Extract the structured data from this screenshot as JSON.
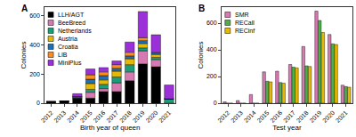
{
  "chart_data": [
    {
      "type": "bar",
      "title": "A",
      "stacked": true,
      "grid": false,
      "legend": "upper left",
      "x_label": "Birth year of queen",
      "y_label": "Colonies",
      "categories": [
        "2012",
        "2013",
        "2014",
        "2015",
        "2016",
        "2017",
        "2018",
        "2019",
        "2020",
        "2021"
      ],
      "series": [
        {
          "name": "LLH/AGT",
          "color": "#000000",
          "values": [
            10,
            15,
            35,
            35,
            80,
            80,
            155,
            270,
            250,
            0
          ]
        },
        {
          "name": "BeeBreed",
          "color": "#d67ab1",
          "values": [
            0,
            0,
            0,
            40,
            20,
            60,
            60,
            90,
            50,
            0
          ]
        },
        {
          "name": "Netherlands",
          "color": "#1b9e77",
          "values": [
            0,
            0,
            10,
            20,
            30,
            40,
            50,
            20,
            15,
            30
          ]
        },
        {
          "name": "Austria",
          "color": "#e6b800",
          "values": [
            0,
            0,
            0,
            40,
            30,
            40,
            40,
            30,
            20,
            0
          ]
        },
        {
          "name": "Croatia",
          "color": "#1f6fb4",
          "values": [
            0,
            0,
            0,
            30,
            30,
            20,
            20,
            20,
            10,
            0
          ]
        },
        {
          "name": "LIB",
          "color": "#ff8c1a",
          "values": [
            0,
            0,
            0,
            30,
            25,
            25,
            25,
            20,
            5,
            0
          ]
        },
        {
          "name": "MiniPlus",
          "color": "#9b30d9",
          "values": [
            0,
            0,
            20,
            40,
            30,
            25,
            70,
            180,
            120,
            95
          ]
        }
      ],
      "ylim": [
        0,
        660
      ],
      "yticks": [
        0,
        200,
        400,
        600
      ]
    },
    {
      "type": "bar",
      "title": "B",
      "stacked": false,
      "grid": false,
      "legend": "upper left",
      "x_label": "Test year",
      "y_label": "Colonies",
      "categories": [
        "2012",
        "2013",
        "2014",
        "2015",
        "2016",
        "2017",
        "2018",
        "2019",
        "2020",
        "2021"
      ],
      "series": [
        {
          "name": "SMR",
          "color": "#d67ab1",
          "values": [
            10,
            20,
            65,
            235,
            240,
            290,
            425,
            690,
            515,
            135
          ]
        },
        {
          "name": "RECall",
          "color": "#4daf4a",
          "values": [
            0,
            0,
            0,
            165,
            155,
            270,
            280,
            620,
            445,
            125
          ]
        },
        {
          "name": "RECinf",
          "color": "#e6b800",
          "values": [
            0,
            0,
            0,
            160,
            150,
            265,
            275,
            530,
            440,
            120
          ]
        }
      ],
      "ylim": [
        0,
        720
      ],
      "yticks": [
        0,
        200,
        400,
        600
      ]
    }
  ]
}
